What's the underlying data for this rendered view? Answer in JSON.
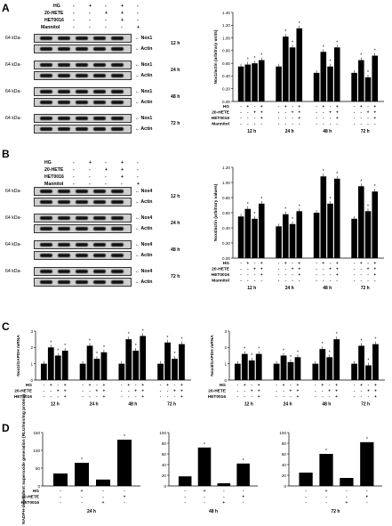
{
  "panels": {
    "A": {
      "label": "A",
      "blot_rows": [
        {
          "time": "12 h",
          "target": "Nox1",
          "kda": "64 kDa-"
        },
        {
          "time": "24 h",
          "target": "Nox1",
          "kda": "64 kDa-"
        },
        {
          "time": "48 h",
          "target": "Nox1",
          "kda": "64 kDa-"
        },
        {
          "time": "72 h",
          "target": "Nox1",
          "kda": "64 kDa-"
        }
      ],
      "loading": "Actin",
      "treat_labels": [
        "HG",
        "20-HETE",
        "HET0016",
        "Mannitol"
      ],
      "treat_signs": [
        [
          "-",
          "+",
          "-",
          "+",
          "-"
        ],
        [
          "-",
          "-",
          "+",
          "+",
          "-"
        ],
        [
          "-",
          "-",
          "-",
          "+",
          "-"
        ],
        [
          "-",
          "-",
          "-",
          "-",
          "+"
        ]
      ]
    },
    "B": {
      "label": "B",
      "blot_rows": [
        {
          "time": "12 h",
          "target": "Nox4",
          "kda": "64 kDa-"
        },
        {
          "time": "24 h",
          "target": "Nox4",
          "kda": "64 kDa-"
        },
        {
          "time": "48 h",
          "target": "Nox4",
          "kda": "64 kDa-"
        },
        {
          "time": "72 h",
          "target": "Nox4",
          "kda": "64 kDa-"
        }
      ],
      "loading": "Actin"
    },
    "C": {
      "label": "C"
    },
    "D": {
      "label": "D"
    }
  },
  "chart_data": [
    {
      "id": "A-chart",
      "type": "bar",
      "ylabel": "Nox1/actin (arbitrary units)",
      "ylim": [
        0,
        1.4
      ],
      "yticks": [
        "0.00",
        "0.20",
        "0.40",
        "0.60",
        "0.80",
        "1.00",
        "1.20",
        "1.40"
      ],
      "groups": [
        "12 h",
        "24 h",
        "48 h",
        "72 h"
      ],
      "values": [
        [
          0.55,
          0.58,
          0.6,
          0.65
        ],
        [
          0.55,
          1.02,
          0.85,
          1.15
        ],
        [
          0.45,
          0.78,
          0.55,
          0.85
        ],
        [
          0.45,
          0.65,
          0.38,
          0.72
        ]
      ],
      "treat_labels": [
        "HG",
        "20-HETE",
        "HET0016",
        "Mannitol"
      ],
      "signs": [
        [
          "-",
          "+",
          "-",
          "+"
        ],
        [
          "-",
          "-",
          "+",
          "+"
        ],
        [
          "-",
          "-",
          "-",
          "+"
        ],
        [
          "-",
          "-",
          "-",
          "-"
        ]
      ]
    },
    {
      "id": "B-chart",
      "type": "bar",
      "ylabel": "Nox4/actin (arbitrary values)",
      "ylim": [
        0,
        1.2
      ],
      "yticks": [
        "0.00",
        "0.20",
        "0.40",
        "0.60",
        "0.80",
        "1.00",
        "1.20"
      ],
      "groups": [
        "12 h",
        "24 h",
        "48 h",
        "72 h"
      ],
      "values": [
        [
          0.55,
          0.65,
          0.52,
          0.72
        ],
        [
          0.42,
          0.58,
          0.45,
          0.62
        ],
        [
          0.6,
          1.08,
          0.72,
          1.05
        ],
        [
          0.52,
          0.95,
          0.62,
          0.88
        ]
      ],
      "treat_labels": [
        "HG",
        "20-HETE",
        "HET0016",
        "Mannitol"
      ],
      "signs": [
        [
          "-",
          "+",
          "-",
          "+"
        ],
        [
          "-",
          "-",
          "+",
          "+"
        ],
        [
          "-",
          "-",
          "-",
          "+"
        ],
        [
          "-",
          "-",
          "-",
          "-"
        ]
      ]
    },
    {
      "id": "C1-chart",
      "type": "bar",
      "ylabel": "Nox1/GAPDH mRNA",
      "ylim": [
        0,
        3
      ],
      "yticks": [
        "0",
        "1",
        "2",
        "3"
      ],
      "groups": [
        "12 h",
        "24 h",
        "48 h",
        "72 h"
      ],
      "values": [
        [
          1.0,
          2.0,
          1.5,
          1.8
        ],
        [
          1.0,
          2.1,
          1.3,
          1.7
        ],
        [
          1.0,
          2.5,
          1.8,
          2.7
        ],
        [
          1.0,
          2.3,
          1.3,
          2.2
        ]
      ],
      "treat_labels": [
        "HG",
        "20-HETE",
        "HET0016"
      ],
      "signs": [
        [
          "-",
          "+",
          "-",
          "+"
        ],
        [
          "-",
          "-",
          "+",
          "+"
        ],
        [
          "-",
          "-",
          "-",
          "+"
        ]
      ]
    },
    {
      "id": "C2-chart",
      "type": "bar",
      "ylabel": "Nox4/GAPDH mRNA",
      "ylim": [
        0,
        3
      ],
      "yticks": [
        "0",
        "1",
        "2",
        "3"
      ],
      "groups": [
        "12 h",
        "24 h",
        "48 h",
        "72 h"
      ],
      "values": [
        [
          1.0,
          1.6,
          1.2,
          1.6
        ],
        [
          1.0,
          1.5,
          1.1,
          1.4
        ],
        [
          1.0,
          1.9,
          1.4,
          2.5
        ],
        [
          1.0,
          2.1,
          0.9,
          2.2
        ]
      ],
      "treat_labels": [
        "HG",
        "20-HETE",
        "HET0016"
      ],
      "signs": [
        [
          "-",
          "+",
          "-",
          "+"
        ],
        [
          "-",
          "-",
          "+",
          "+"
        ],
        [
          "-",
          "-",
          "-",
          "+"
        ]
      ]
    },
    {
      "id": "D1-chart",
      "type": "bar",
      "ylabel": "NADPH-dependent superoxide generation (RLU/min/mg protein)",
      "ylim": [
        0,
        150
      ],
      "yticks": [
        "0",
        "50",
        "100",
        "150"
      ],
      "group": "24 h",
      "values": [
        35,
        65,
        18,
        130
      ],
      "treat_labels": [
        "HG",
        "20-HETE",
        "HET0016"
      ],
      "signs": [
        [
          "-",
          "+",
          "-",
          "-"
        ],
        [
          "-",
          "-",
          "-",
          "+"
        ],
        [
          "-",
          "-",
          "+",
          "-"
        ]
      ]
    },
    {
      "id": "D2-chart",
      "type": "bar",
      "ylim": [
        0,
        100
      ],
      "yticks": [
        "0",
        "20",
        "40",
        "60",
        "80",
        "100"
      ],
      "group": "48 h",
      "values": [
        18,
        72,
        5,
        42
      ],
      "signs": [
        [
          "-",
          "+",
          "-",
          "-"
        ],
        [
          "-",
          "-",
          "-",
          "+"
        ],
        [
          "-",
          "-",
          "+",
          "-"
        ]
      ]
    },
    {
      "id": "D3-chart",
      "type": "bar",
      "ylim": [
        0,
        100
      ],
      "yticks": [
        "0",
        "20",
        "40",
        "60",
        "80",
        "100"
      ],
      "group": "72 h",
      "values": [
        25,
        60,
        15,
        82
      ],
      "signs": [
        [
          "-",
          "+",
          "-",
          "-"
        ],
        [
          "-",
          "-",
          "-",
          "+"
        ],
        [
          "-",
          "-",
          "+",
          "-"
        ]
      ]
    }
  ]
}
